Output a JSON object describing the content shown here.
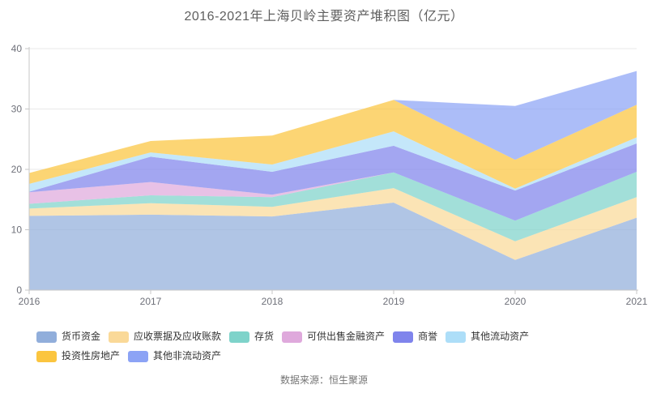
{
  "title": "2016-2021年上海贝岭主要资产堆积图（亿元）",
  "source": "数据来源：恒生聚源",
  "chart_data": {
    "type": "area",
    "stacked": true,
    "title": "2016-2021年上海贝岭主要资产堆积图（亿元）",
    "categories": [
      "2016",
      "2017",
      "2018",
      "2019",
      "2020",
      "2021"
    ],
    "series": [
      {
        "name": "货币资金",
        "color": "#91AEDB",
        "values": [
          12.3,
          12.5,
          12.2,
          14.5,
          5.0,
          12.0
        ]
      },
      {
        "name": "应收票据及应收账款",
        "color": "#FAD998",
        "values": [
          1.2,
          1.9,
          1.6,
          2.4,
          3.1,
          3.4
        ]
      },
      {
        "name": "存货",
        "color": "#7ED3CA",
        "values": [
          0.8,
          1.3,
          1.6,
          2.6,
          3.4,
          4.2
        ]
      },
      {
        "name": "可供出售金融资产",
        "color": "#DFA9DC",
        "values": [
          1.9,
          2.2,
          0.4,
          0,
          0,
          0
        ]
      },
      {
        "name": "商誉",
        "color": "#7F84EC",
        "values": [
          0.1,
          4.2,
          3.8,
          4.4,
          5.0,
          4.7
        ]
      },
      {
        "name": "其他流动资产",
        "color": "#ADDEF8",
        "values": [
          1.3,
          0.7,
          1.2,
          2.4,
          0.3,
          1.0
        ]
      },
      {
        "name": "投资性房地产",
        "color": "#FBC53F",
        "values": [
          1.8,
          1.9,
          4.8,
          5.2,
          4.8,
          5.4
        ]
      },
      {
        "name": "其他非流动资产",
        "color": "#8CA3F5",
        "values": [
          0,
          0,
          0,
          0,
          8.9,
          5.6
        ]
      }
    ],
    "xlabel": "",
    "ylabel": "",
    "ylim": [
      0,
      40
    ],
    "yticks": [
      0,
      10,
      20,
      30,
      40
    ],
    "grid": true,
    "legend_position": "bottom",
    "fill_opacity": 0.72,
    "axis_color": "#c7c7c7",
    "grid_color": "#e9e9e9",
    "tick_label_color": "#6e7079"
  }
}
